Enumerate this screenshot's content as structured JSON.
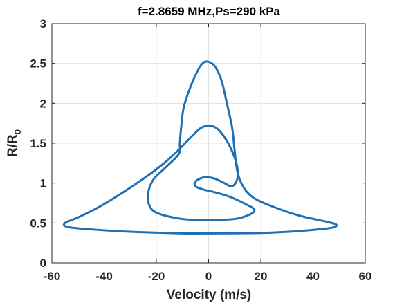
{
  "chart_data": {
    "type": "line",
    "title": "f=2.8659 MHz,Ps=290 kPa",
    "xlabel": "Velocity (m/s)",
    "ylabel_main": "R/R",
    "ylabel_sub": "0",
    "xlim": [
      -60,
      60
    ],
    "ylim": [
      0,
      3
    ],
    "xticks": [
      -60,
      -40,
      -20,
      0,
      20,
      40,
      60
    ],
    "yticks": [
      0,
      0.5,
      1,
      1.5,
      2,
      2.5,
      3
    ],
    "xtick_labels": [
      "-60",
      "-40",
      "-20",
      "0",
      "20",
      "40",
      "60"
    ],
    "ytick_labels": [
      "0",
      "0.5",
      "1",
      "1.5",
      "2",
      "2.5",
      "3"
    ],
    "grid": true,
    "line_color": "#1f6fb2",
    "series": [
      {
        "points": [
          [
            0,
            0.37
          ],
          [
            25,
            0.38
          ],
          [
            45,
            0.43
          ],
          [
            49,
            0.47
          ],
          [
            46,
            0.51
          ],
          [
            35,
            0.59
          ],
          [
            25,
            0.7
          ],
          [
            17,
            0.82
          ],
          [
            13,
            0.97
          ],
          [
            11,
            1.15
          ],
          [
            10,
            1.4
          ],
          [
            9,
            1.7
          ],
          [
            7,
            2.0
          ],
          [
            5,
            2.28
          ],
          [
            2.5,
            2.46
          ],
          [
            0,
            2.52
          ],
          [
            -2,
            2.51
          ],
          [
            -4,
            2.42
          ],
          [
            -7,
            2.2
          ],
          [
            -9.5,
            1.95
          ],
          [
            -10.5,
            1.7
          ],
          [
            -11,
            1.5
          ],
          [
            -11,
            1.4
          ],
          [
            -12.5,
            1.32
          ],
          [
            -17,
            1.18
          ],
          [
            -21,
            1.05
          ],
          [
            -23,
            0.9
          ],
          [
            -23,
            0.75
          ],
          [
            -20,
            0.63
          ],
          [
            -10,
            0.55
          ],
          [
            0,
            0.54
          ],
          [
            10,
            0.55
          ],
          [
            16,
            0.61
          ],
          [
            17.5,
            0.67
          ],
          [
            14,
            0.74
          ],
          [
            8,
            0.83
          ],
          [
            3,
            0.88
          ],
          [
            -2,
            0.92
          ],
          [
            -5,
            0.96
          ],
          [
            -5,
            1.02
          ],
          [
            -2,
            1.07
          ],
          [
            2,
            1.06
          ],
          [
            6,
            1.0
          ],
          [
            9,
            0.96
          ],
          [
            11,
            1.05
          ],
          [
            11,
            1.2
          ],
          [
            9,
            1.4
          ],
          [
            6,
            1.58
          ],
          [
            3,
            1.69
          ],
          [
            0,
            1.72
          ],
          [
            -3,
            1.69
          ],
          [
            -6,
            1.6
          ],
          [
            -9,
            1.5
          ],
          [
            -12,
            1.4
          ],
          [
            -17,
            1.25
          ],
          [
            -23,
            1.1
          ],
          [
            -32,
            0.9
          ],
          [
            -42,
            0.7
          ],
          [
            -50,
            0.57
          ],
          [
            -55,
            0.5
          ],
          [
            -54,
            0.45
          ],
          [
            -45,
            0.42
          ],
          [
            -30,
            0.39
          ],
          [
            -10,
            0.37
          ],
          [
            0,
            0.37
          ]
        ]
      }
    ]
  }
}
